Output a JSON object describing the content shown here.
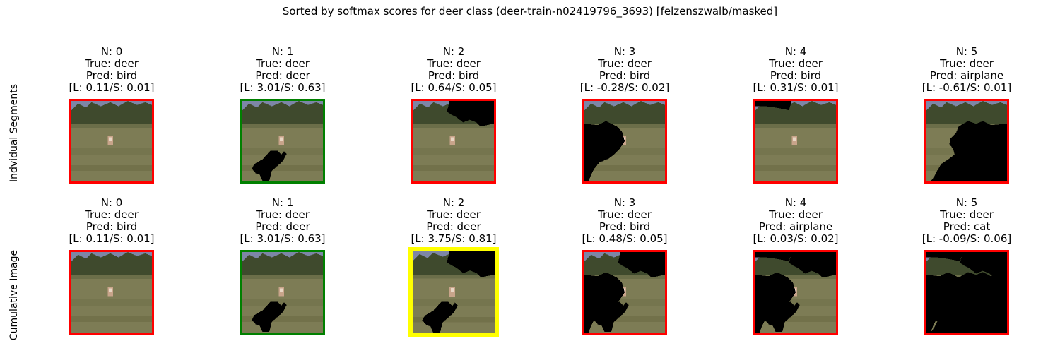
{
  "title": "Sorted by softmax scores for deer class (deer-train-n02419796_3693) [felzenszwalb/masked]",
  "row_labels": [
    "Indvidual Segments",
    "Cumulative Image"
  ],
  "border_colors": {
    "incorrect": "#ff0000",
    "correct": "#008000",
    "best": "#ffff00"
  },
  "scene_colors": {
    "sky": "#7d86a6",
    "trees": "#3f4a2d",
    "field": "#7d7c55",
    "deer": "#c8a48a",
    "mask": "#000000"
  },
  "chart_data": {
    "type": "image-grid",
    "rows": [
      {
        "label": "Indvidual Segments",
        "cells": [
          {
            "n": "N: 0",
            "true": "True: deer",
            "pred": "Pred: bird",
            "scores": "[L: 0.11/S: 0.01]",
            "logit": 0.11,
            "softmax": 0.01,
            "border": "incorrect",
            "masked_regions": []
          },
          {
            "n": "N: 1",
            "true": "True: deer",
            "pred": "Pred: deer",
            "scores": "[L: 3.01/S: 0.63]",
            "logit": 3.01,
            "softmax": 0.63,
            "border": "correct",
            "masked_regions": [
              "segment-1"
            ]
          },
          {
            "n": "N: 2",
            "true": "True: deer",
            "pred": "Pred: bird",
            "scores": "[L: 0.64/S: 0.05]",
            "logit": 0.64,
            "softmax": 0.05,
            "border": "incorrect",
            "masked_regions": [
              "segment-2"
            ]
          },
          {
            "n": "N: 3",
            "true": "True: deer",
            "pred": "Pred: bird",
            "scores": "[L: -0.28/S: 0.02]",
            "logit": -0.28,
            "softmax": 0.02,
            "border": "incorrect",
            "masked_regions": [
              "segment-3"
            ]
          },
          {
            "n": "N: 4",
            "true": "True: deer",
            "pred": "Pred: bird",
            "scores": "[L: 0.31/S: 0.01]",
            "logit": 0.31,
            "softmax": 0.01,
            "border": "incorrect",
            "masked_regions": [
              "segment-4"
            ]
          },
          {
            "n": "N: 5",
            "true": "True: deer",
            "pred": "Pred: airplane",
            "scores": "[L: -0.61/S: 0.01]",
            "logit": -0.61,
            "softmax": 0.01,
            "border": "incorrect",
            "masked_regions": [
              "segment-5"
            ]
          }
        ]
      },
      {
        "label": "Cumulative Image",
        "cells": [
          {
            "n": "N: 0",
            "true": "True: deer",
            "pred": "Pred: bird",
            "scores": "[L: 0.11/S: 0.01]",
            "logit": 0.11,
            "softmax": 0.01,
            "border": "incorrect",
            "masked_regions": []
          },
          {
            "n": "N: 1",
            "true": "True: deer",
            "pred": "Pred: deer",
            "scores": "[L: 3.01/S: 0.63]",
            "logit": 3.01,
            "softmax": 0.63,
            "border": "correct",
            "masked_regions": [
              "segment-1"
            ]
          },
          {
            "n": "N: 2",
            "true": "True: deer",
            "pred": "Pred: deer",
            "scores": "[L: 3.75/S: 0.81]",
            "logit": 3.75,
            "softmax": 0.81,
            "border": "best",
            "masked_regions": [
              "segment-1",
              "segment-2"
            ]
          },
          {
            "n": "N: 3",
            "true": "True: deer",
            "pred": "Pred: bird",
            "scores": "[L: 0.48/S: 0.05]",
            "logit": 0.48,
            "softmax": 0.05,
            "border": "incorrect",
            "masked_regions": [
              "segment-1",
              "segment-2",
              "segment-3"
            ]
          },
          {
            "n": "N: 4",
            "true": "True: deer",
            "pred": "Pred: airplane",
            "scores": "[L: 0.03/S: 0.02]",
            "logit": 0.03,
            "softmax": 0.02,
            "border": "incorrect",
            "masked_regions": [
              "segment-1",
              "segment-2",
              "segment-3",
              "segment-4"
            ]
          },
          {
            "n": "N: 5",
            "true": "True: deer",
            "pred": "Pred: cat",
            "scores": "[L: -0.09/S: 0.06]",
            "logit": -0.09,
            "softmax": 0.06,
            "border": "incorrect",
            "masked_regions": [
              "segment-1",
              "segment-2",
              "segment-3",
              "segment-4",
              "segment-5"
            ]
          }
        ]
      }
    ]
  }
}
